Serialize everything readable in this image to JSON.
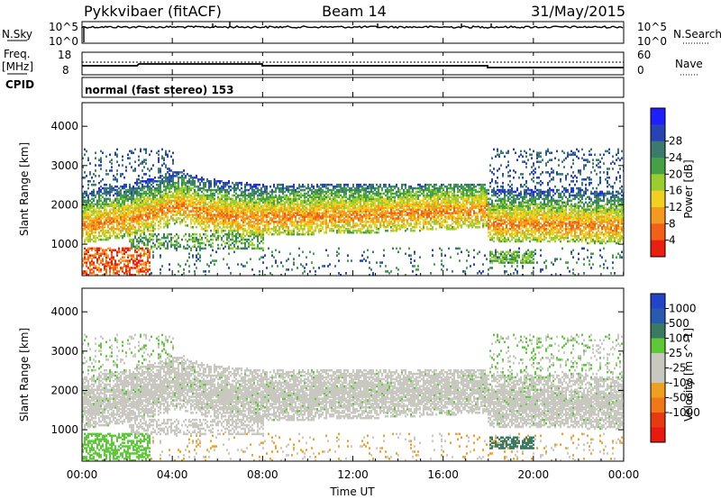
{
  "header": {
    "title": "Pykkvibaer (fitACF)",
    "beam": "Beam 14",
    "date": "31/May/2015"
  },
  "nsky_panel": {
    "left_label": "N.Sky",
    "right_label": "N.Search",
    "top_tick": "10^5",
    "bottom_tick": "10^0"
  },
  "freq_panel": {
    "label_line1": "Freq.",
    "label_line2": "[MHz]",
    "right_label": "Nave",
    "left_ticks": [
      "18",
      "8"
    ],
    "right_ticks": [
      "60",
      "0"
    ]
  },
  "cpid_panel": {
    "label": "CPID",
    "text": "normal (fast stereo) 153"
  },
  "chart_data": [
    {
      "type": "heatmap",
      "quantity": "Power",
      "ylabel": "Slant Range [km]",
      "ylim": [
        200,
        4600
      ],
      "yticks": [
        1000,
        2000,
        3000,
        4000
      ],
      "colorbar_label": "Power [dB]",
      "colorbar_ticks": [
        "4",
        "8",
        "12",
        "16",
        "20",
        "24",
        "28"
      ],
      "colorbar_colors": [
        "#1e1eff",
        "#2844b4",
        "#3c7a6e",
        "#46a046",
        "#9acd32",
        "#f0d020",
        "#f59a20",
        "#f06018",
        "#e82010"
      ]
    },
    {
      "type": "heatmap",
      "quantity": "Velocity",
      "ylabel": "Slant Range [km]",
      "ylim": [
        200,
        4600
      ],
      "yticks": [
        1000,
        2000,
        3000,
        4000
      ],
      "colorbar_label": "Velocity [m s^-1]",
      "colorbar_ticks": [
        "1000",
        "500",
        "100",
        "25",
        "-25",
        "-100",
        "-500",
        "-1000"
      ],
      "colorbar_colors": [
        "#2244c8",
        "#2a5ab0",
        "#3a7a62",
        "#5fc83a",
        "#c8c8c0",
        "#c8c8c0",
        "#f0a020",
        "#f07818",
        "#e83a12",
        "#e81a10"
      ]
    }
  ],
  "x_axis": {
    "label": "Time UT",
    "ticks": [
      "00:00",
      "04:00",
      "08:00",
      "12:00",
      "16:00",
      "20:00",
      "00:00"
    ]
  }
}
